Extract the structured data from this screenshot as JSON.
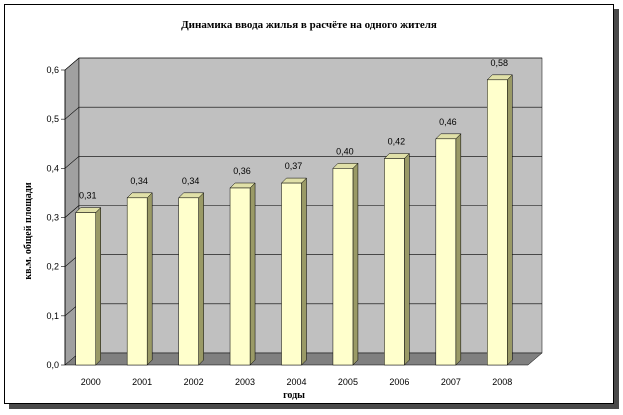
{
  "chart_data": {
    "type": "bar",
    "title": "Динамика ввода жилья в расчёте на одного жителя",
    "xlabel": "годы",
    "ylabel": "кв.м. общей площади",
    "categories": [
      "2000",
      "2001",
      "2002",
      "2003",
      "2004",
      "2005",
      "2006",
      "2007",
      "2008"
    ],
    "values": [
      0.31,
      0.34,
      0.34,
      0.36,
      0.37,
      0.4,
      0.42,
      0.46,
      0.58
    ],
    "data_labels": [
      "0,31",
      "0,34",
      "0,34",
      "0,36",
      "0,37",
      "0,40",
      "0,42",
      "0,46",
      "0,58"
    ],
    "ylim": [
      0,
      0.6
    ],
    "yticks": [
      0,
      0.1,
      0.2,
      0.3,
      0.4,
      0.5,
      0.6
    ],
    "ytick_labels": [
      "0,0",
      "0,1",
      "0,2",
      "0,3",
      "0,4",
      "0,5",
      "0,6"
    ],
    "grid": true,
    "style": "3d-bar",
    "colors": {
      "bar_front": "#ffffcc",
      "bar_side": "#9a9a66",
      "bar_top": "#e0e0a8",
      "wall": "#c0c0c0",
      "floor": "#808080",
      "wall_side": "#a0a0a0"
    }
  }
}
